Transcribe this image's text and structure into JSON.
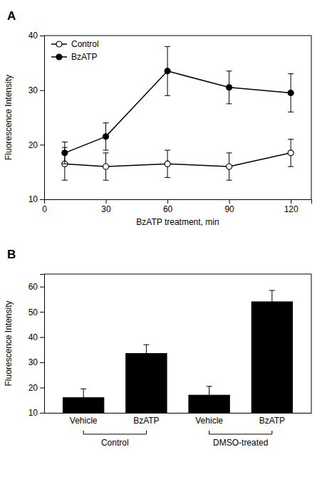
{
  "chart_data": [
    {
      "type": "line",
      "title": "A",
      "x": [
        10,
        30,
        60,
        90,
        120
      ],
      "series": [
        {
          "name": "Control",
          "color": "#000000",
          "marker": "circle-open",
          "values": [
            16.5,
            16.0,
            16.5,
            16.0,
            18.5
          ],
          "errors": [
            3.0,
            2.5,
            2.5,
            2.5,
            2.5
          ]
        },
        {
          "name": "BzATP",
          "color": "#000000",
          "marker": "circle",
          "values": [
            18.5,
            21.5,
            33.5,
            30.5,
            29.5
          ],
          "errors": [
            2.0,
            2.5,
            4.5,
            3.0,
            3.5
          ]
        }
      ],
      "xlabel": "BzATP treatment, min",
      "ylabel": "Fluorescence Intensity",
      "xlim": [
        0,
        130
      ],
      "ylim": [
        10,
        40
      ],
      "xticks": [
        0,
        30,
        60,
        90,
        120
      ],
      "yticks": [
        10,
        20,
        30,
        40
      ],
      "legend": "upper left"
    },
    {
      "type": "bar",
      "title": "B",
      "categories": [
        "Vehicle",
        "BzATP",
        "Vehicle",
        "BzATP"
      ],
      "values": [
        16.0,
        33.5,
        17.0,
        54.0
      ],
      "errors": [
        3.5,
        3.5,
        3.5,
        4.5
      ],
      "group_labels": [
        "Control",
        "DMSO-treated"
      ],
      "color": "#000000",
      "ylabel": "Fluorescence Intensity",
      "ylim": [
        10,
        65
      ],
      "yticks": [
        10,
        20,
        30,
        40,
        50,
        60
      ]
    }
  ]
}
